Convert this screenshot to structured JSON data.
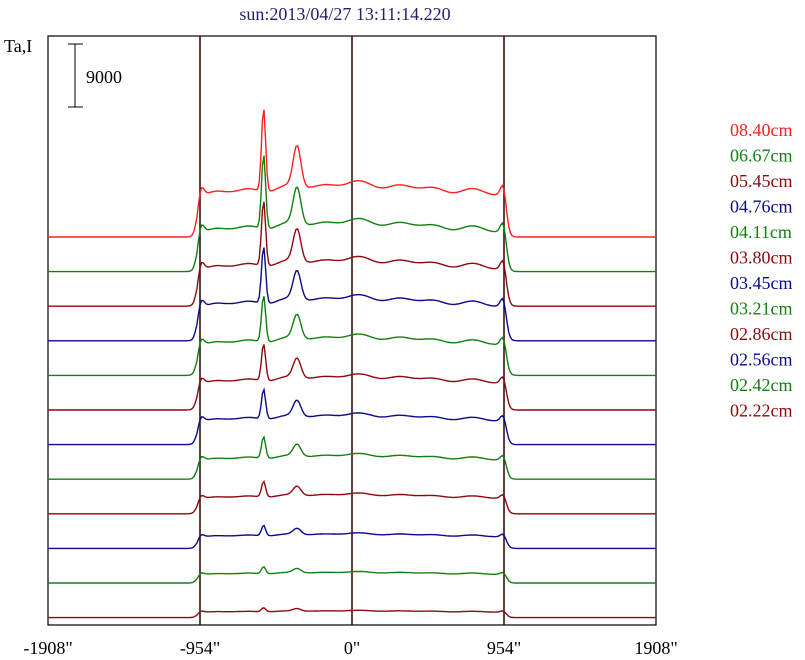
{
  "chart_data": {
    "type": "line",
    "title": "sun:2013/04/27 13:11:14.220",
    "ylabel": "Ta,I",
    "scale_bar_label": "9000",
    "x_ticks": [
      {
        "value": -1908,
        "label": "-1908\""
      },
      {
        "value": -954,
        "label": "-954\""
      },
      {
        "value": 0,
        "label": "0\""
      },
      {
        "value": 954,
        "label": "954\""
      },
      {
        "value": 1908,
        "label": "1908\""
      }
    ],
    "vlines": [
      -954,
      0,
      954
    ],
    "xlim": [
      -1908,
      1908
    ],
    "grid": false,
    "legend_position": "right",
    "colors": {
      "red": "#ff2020",
      "green": "#108010",
      "maroon": "#8b0a10",
      "navy": "#0a0a8b",
      "frame": "#000000",
      "marker": "#3a1010"
    },
    "series": [
      {
        "name": "08.40cm",
        "color": "#ff2020",
        "baseline": 0,
        "peak": 1.0
      },
      {
        "name": "06.67cm",
        "color": "#108010",
        "baseline": 1,
        "peak": 0.92
      },
      {
        "name": "05.45cm",
        "color": "#8b0a10",
        "baseline": 2,
        "peak": 0.84
      },
      {
        "name": "04.76cm",
        "color": "#0a0a8b",
        "baseline": 3,
        "peak": 0.76
      },
      {
        "name": "04.11cm",
        "color": "#108010",
        "baseline": 4,
        "peak": 0.66
      },
      {
        "name": "03.80cm",
        "color": "#8b0a10",
        "baseline": 5,
        "peak": 0.56
      },
      {
        "name": "03.45cm",
        "color": "#0a0a8b",
        "baseline": 6,
        "peak": 0.48
      },
      {
        "name": "03.21cm",
        "color": "#108010",
        "baseline": 7,
        "peak": 0.38
      },
      {
        "name": "02.86cm",
        "color": "#8b0a10",
        "baseline": 8,
        "peak": 0.3
      },
      {
        "name": "02.56cm",
        "color": "#0a0a8b",
        "baseline": 9,
        "peak": 0.22
      },
      {
        "name": "02.42cm",
        "color": "#108010",
        "baseline": 10,
        "peak": 0.16
      },
      {
        "name": "02.22cm",
        "color": "#8b0a10",
        "baseline": 11,
        "peak": 0.1
      }
    ]
  }
}
